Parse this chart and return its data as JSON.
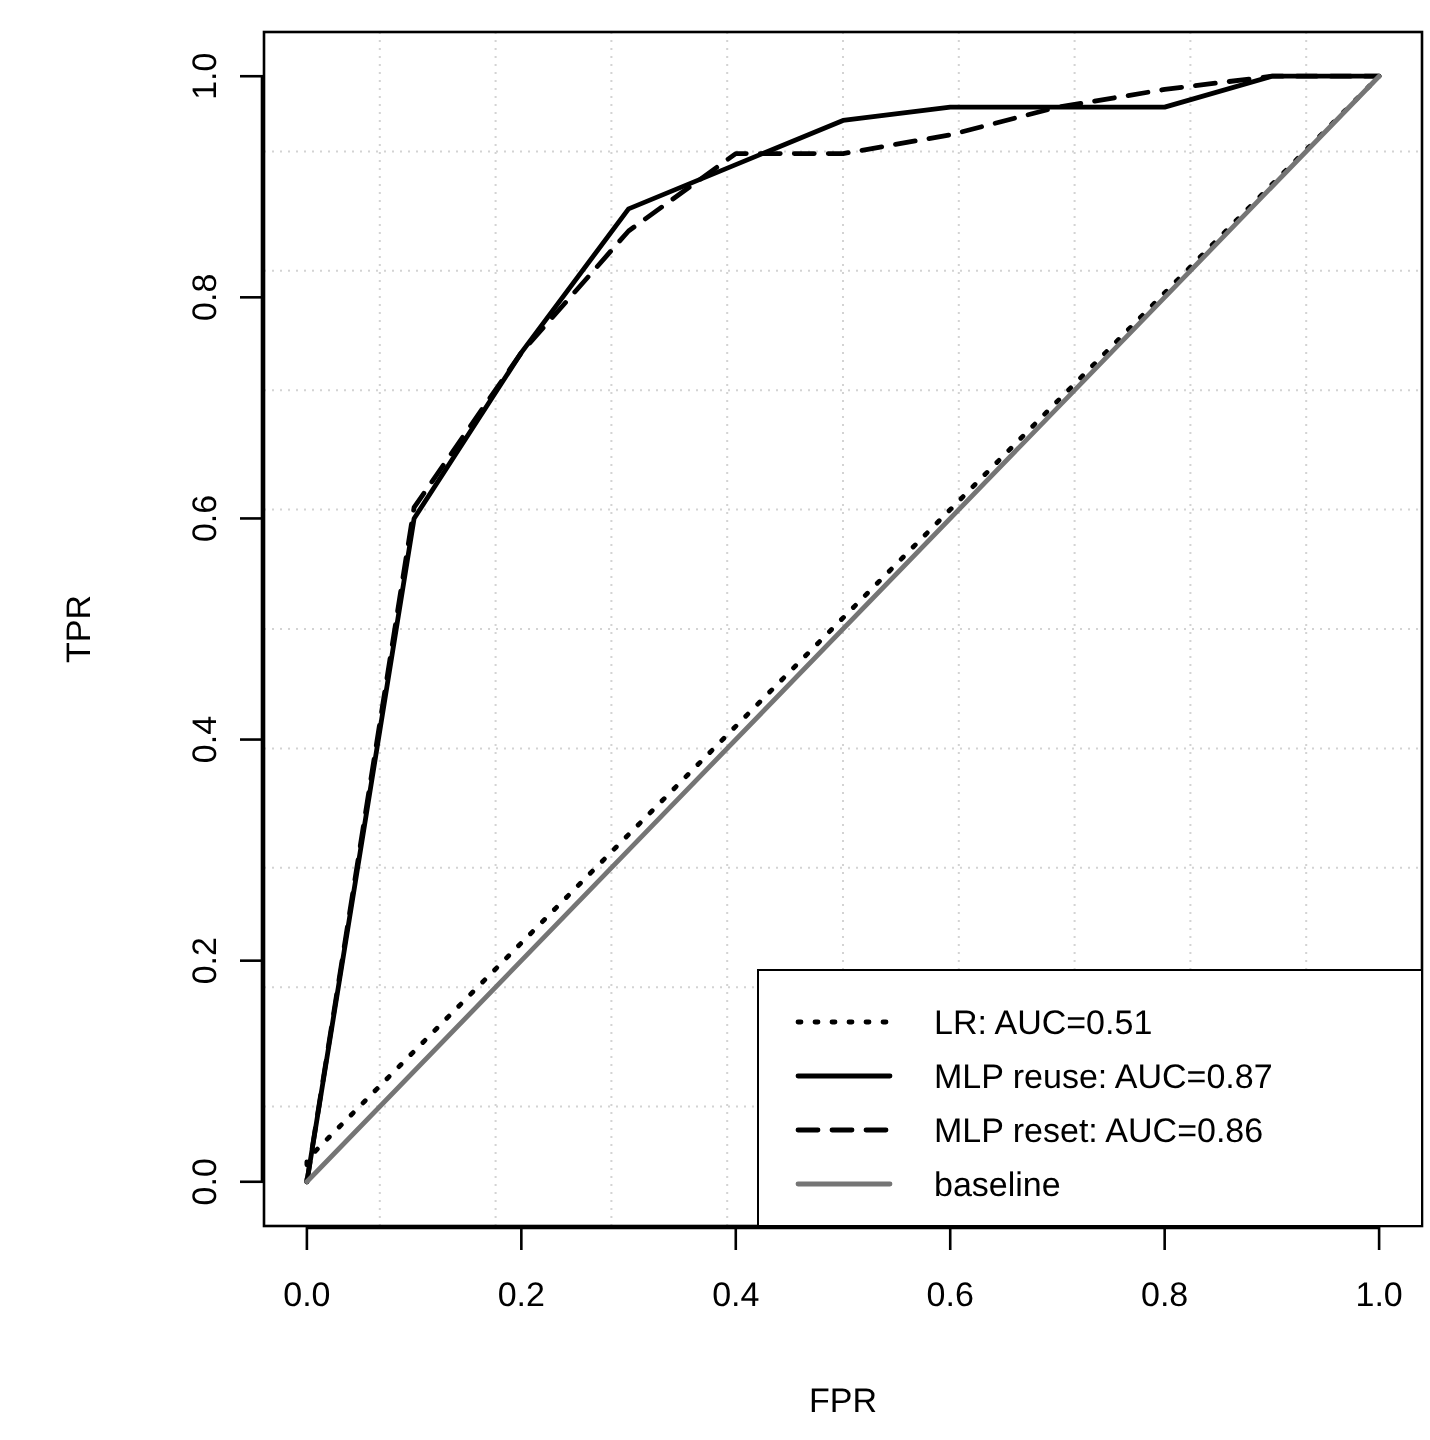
{
  "chart_data": {
    "type": "line",
    "xlabel": "FPR",
    "ylabel": "TPR",
    "xlim": [
      -0.04,
      1.04
    ],
    "ylim": [
      -0.04,
      1.04
    ],
    "xticks": [
      {
        "value": 0,
        "label": "0.0"
      },
      {
        "value": 0.2,
        "label": "0.2"
      },
      {
        "value": 0.4,
        "label": "0.4"
      },
      {
        "value": 0.6,
        "label": "0.6"
      },
      {
        "value": 0.8,
        "label": "0.8"
      },
      {
        "value": 1,
        "label": "1.0"
      }
    ],
    "yticks": [
      {
        "value": 0,
        "label": "0.0"
      },
      {
        "value": 0.2,
        "label": "0.2"
      },
      {
        "value": 0.4,
        "label": "0.4"
      },
      {
        "value": 0.6,
        "label": "0.6"
      },
      {
        "value": 0.8,
        "label": "0.8"
      },
      {
        "value": 1,
        "label": "1.0"
      }
    ],
    "grid": true,
    "legend": "bottom right",
    "series": [
      {
        "name": "LR: AUC=0.51",
        "color": "#000000",
        "line_style": "dotted",
        "x": [
          0,
          0,
          1
        ],
        "values": [
          0,
          0.02,
          1
        ]
      },
      {
        "name": "MLP reuse: AUC=0.87",
        "color": "#000000",
        "line_style": "solid",
        "x": [
          0,
          0.1,
          0.2,
          0.3,
          0.5,
          0.6,
          0.8,
          0.9,
          1
        ],
        "values": [
          0,
          0.6,
          0.75,
          0.88,
          0.96,
          0.972,
          0.972,
          1,
          1
        ]
      },
      {
        "name": "MLP reset: AUC=0.86",
        "color": "#000000",
        "line_style": "dashed",
        "x": [
          0,
          0.1,
          0.2,
          0.3,
          0.4,
          0.5,
          0.6,
          0.7,
          0.8,
          0.9,
          1
        ],
        "values": [
          0,
          0.61,
          0.75,
          0.86,
          0.93,
          0.93,
          0.947,
          0.972,
          0.988,
          1,
          1
        ]
      },
      {
        "name": "baseline",
        "color": "#757575",
        "line_style": "solid",
        "x": [
          0,
          1
        ],
        "values": [
          0,
          1
        ]
      }
    ]
  }
}
